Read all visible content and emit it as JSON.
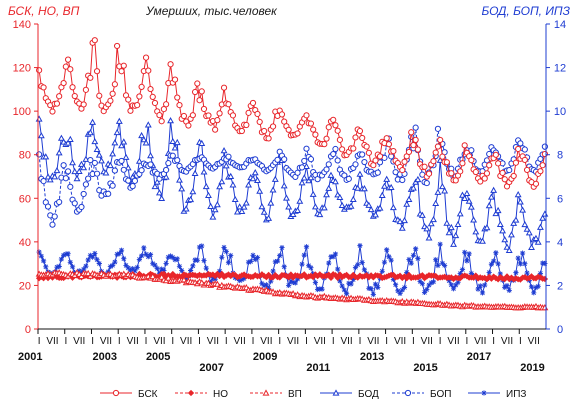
{
  "chart_data": {
    "type": "line",
    "title": "Умерших, тыс.человек",
    "left_axis": {
      "label": "БСК, НО, ВП",
      "range": [
        0,
        140
      ],
      "ticks": [
        0,
        20,
        40,
        60,
        80,
        100,
        120,
        140
      ],
      "color": "#e8262b"
    },
    "right_axis": {
      "label": "БОД, БОП, ИПЗ",
      "range": [
        0,
        14
      ],
      "ticks": [
        0,
        2,
        4,
        6,
        8,
        10,
        12,
        14
      ],
      "color": "#1e3cd2"
    },
    "x_range": [
      "2001-01",
      "2019-12"
    ],
    "month_labels": [
      "I",
      "VII"
    ],
    "year_labels": [
      "2001",
      "2003",
      "2005",
      "2007",
      "2009",
      "2011",
      "2013",
      "2015",
      "2017",
      "2019"
    ],
    "grid": false,
    "legend_position": "bottom",
    "series": [
      {
        "name": "БСК",
        "axis": "left",
        "color": "#e8262b",
        "marker": "circle",
        "trend": [
          [
            2001,
            106
          ],
          [
            2003,
            110
          ],
          [
            2005,
            108
          ],
          [
            2007,
            100
          ],
          [
            2009,
            95
          ],
          [
            2011,
            91
          ],
          [
            2013,
            83
          ],
          [
            2015,
            78
          ],
          [
            2017,
            73
          ],
          [
            2019,
            72
          ]
        ],
        "winter_peak": [
          [
            2001,
            120
          ],
          [
            2003,
            133
          ],
          [
            2005,
            126
          ],
          [
            2007,
            112
          ],
          [
            2009,
            106
          ],
          [
            2011,
            100
          ],
          [
            2013,
            94
          ],
          [
            2015,
            89
          ],
          [
            2017,
            84
          ],
          [
            2019,
            85
          ]
        ]
      },
      {
        "name": "НО",
        "axis": "left",
        "color": "#e8262b",
        "marker": "diamond",
        "trend": [
          [
            2001,
            24
          ],
          [
            2005,
            24.5
          ],
          [
            2010,
            24.5
          ],
          [
            2015,
            24
          ],
          [
            2019,
            23.5
          ]
        ]
      },
      {
        "name": "ВП",
        "axis": "left",
        "color": "#e8262b",
        "marker": "triangle",
        "trend": [
          [
            2001,
            25
          ],
          [
            2003,
            25
          ],
          [
            2005,
            24
          ],
          [
            2007,
            21
          ],
          [
            2009,
            18
          ],
          [
            2011,
            15
          ],
          [
            2013,
            13.5
          ],
          [
            2015,
            12
          ],
          [
            2017,
            10.5
          ],
          [
            2019,
            10
          ]
        ]
      },
      {
        "name": "БОД",
        "axis": "right",
        "color": "#1e3cd2",
        "marker": "triangle",
        "trend": [
          [
            2001,
            7.5
          ],
          [
            2003,
            8
          ],
          [
            2005,
            7.5
          ],
          [
            2007,
            6.5
          ],
          [
            2009,
            6.1
          ],
          [
            2011,
            6
          ],
          [
            2013,
            5.9
          ],
          [
            2015,
            5.5
          ],
          [
            2017,
            5
          ],
          [
            2019,
            4.5
          ]
        ],
        "winter_peak": [
          [
            2001,
            10
          ],
          [
            2003,
            9.3
          ],
          [
            2005,
            10
          ],
          [
            2009,
            8
          ],
          [
            2013,
            7
          ],
          [
            2015,
            8
          ],
          [
            2017,
            7
          ],
          [
            2019,
            6
          ]
        ]
      },
      {
        "name": "БОП",
        "axis": "right",
        "color": "#1e3cd2",
        "marker": "circle-open",
        "trend": [
          [
            2001,
            5.8
          ],
          [
            2003,
            6.5
          ],
          [
            2005,
            7.2
          ],
          [
            2007,
            7.6
          ],
          [
            2009,
            7.6
          ],
          [
            2011,
            7.3
          ],
          [
            2013,
            7.4
          ],
          [
            2015,
            7.6
          ],
          [
            2017,
            7.6
          ],
          [
            2019,
            7.8
          ]
        ],
        "winter_peak": [
          [
            2009,
            8
          ],
          [
            2013,
            8.5
          ],
          [
            2015,
            9.3
          ],
          [
            2017,
            8.5
          ],
          [
            2019,
            9
          ]
        ]
      },
      {
        "name": "ИПЗ",
        "axis": "right",
        "color": "#1e3cd2",
        "marker": "star",
        "trend": [
          [
            2001,
            2.9
          ],
          [
            2003,
            2.9
          ],
          [
            2005,
            3.1
          ],
          [
            2007,
            2.7
          ],
          [
            2009,
            2.5
          ],
          [
            2011,
            2.5
          ],
          [
            2013,
            2.4
          ],
          [
            2015,
            2.4
          ],
          [
            2017,
            2.4
          ],
          [
            2019,
            2.4
          ]
        ],
        "winter_peak": [
          [
            2005,
            3.8
          ]
        ]
      }
    ]
  }
}
